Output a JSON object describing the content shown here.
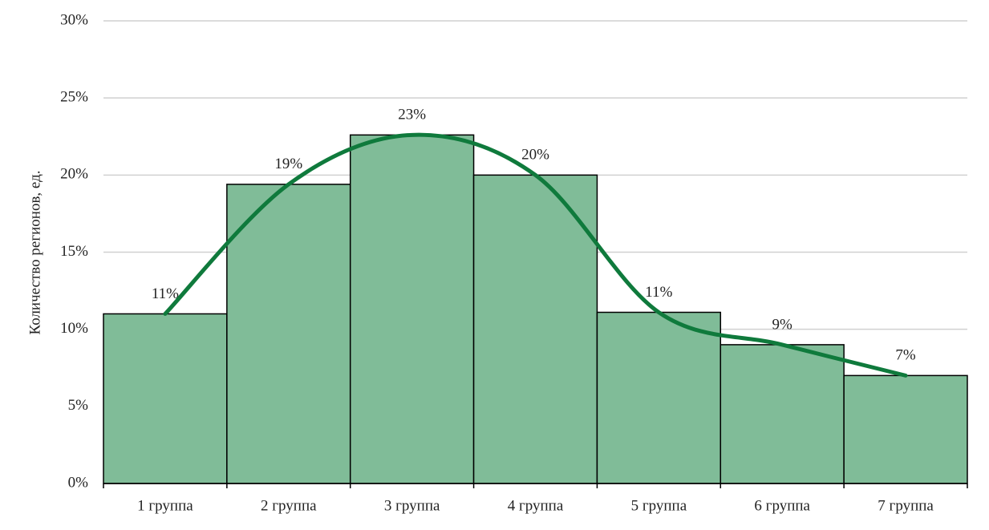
{
  "chart_data": {
    "type": "bar",
    "y_label": "Количество регионов, ед.",
    "categories": [
      "1 группа",
      "2 группа",
      "3 группа",
      "4 группа",
      "5 группа",
      "6 группа",
      "7 группа"
    ],
    "series": [
      {
        "type": "bar",
        "color": "#80bc98",
        "values": [
          11,
          19.4,
          22.6,
          20,
          11.1,
          9,
          7
        ],
        "value_labels": [
          "11%",
          "19%",
          "23%",
          "20%",
          "11%",
          "9%",
          "7%"
        ]
      },
      {
        "type": "line",
        "color": "#0f7a3c",
        "values": [
          11,
          19.4,
          22.6,
          20,
          11.1,
          9,
          7
        ]
      }
    ],
    "ylim": [
      0,
      30
    ],
    "yticks": [
      {
        "value": 0,
        "label": "0%"
      },
      {
        "value": 5,
        "label": "5%"
      },
      {
        "value": 10,
        "label": "10%"
      },
      {
        "value": 15,
        "label": "15%"
      },
      {
        "value": 20,
        "label": "20%"
      },
      {
        "value": 25,
        "label": "25%"
      },
      {
        "value": 30,
        "label": "30%"
      }
    ],
    "grid": true
  }
}
